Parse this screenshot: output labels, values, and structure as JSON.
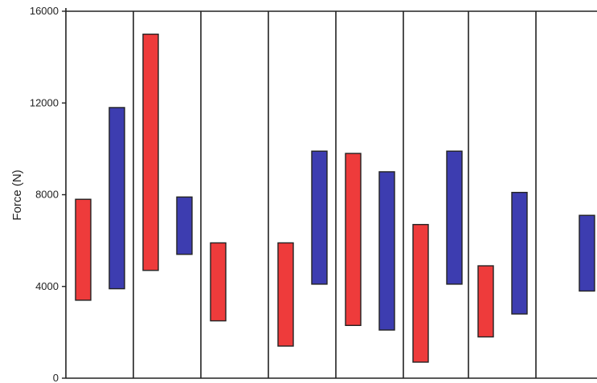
{
  "chart_data": {
    "type": "floating-bar",
    "title": "",
    "xlabel": "",
    "ylabel": "Force (N)",
    "ylim": [
      0,
      16000
    ],
    "yticks": [
      0,
      4000,
      8000,
      12000,
      16000
    ],
    "grid": false,
    "legend": "none",
    "group_count": 8,
    "series": [
      {
        "color": "#ee3b3b",
        "ranges": [
          [
            3400,
            7800
          ],
          [
            4700,
            15000
          ],
          [
            2500,
            5900
          ],
          [
            1400,
            5900
          ],
          [
            2300,
            9800
          ],
          [
            700,
            6700
          ],
          [
            1800,
            4900
          ],
          null
        ]
      },
      {
        "color": "#3d3db0",
        "ranges": [
          [
            3900,
            11800
          ],
          [
            5400,
            7900
          ],
          null,
          [
            4100,
            9900
          ],
          [
            2100,
            9000
          ],
          [
            4100,
            9900
          ],
          [
            2800,
            8100
          ],
          [
            3800,
            7100
          ]
        ]
      }
    ]
  }
}
